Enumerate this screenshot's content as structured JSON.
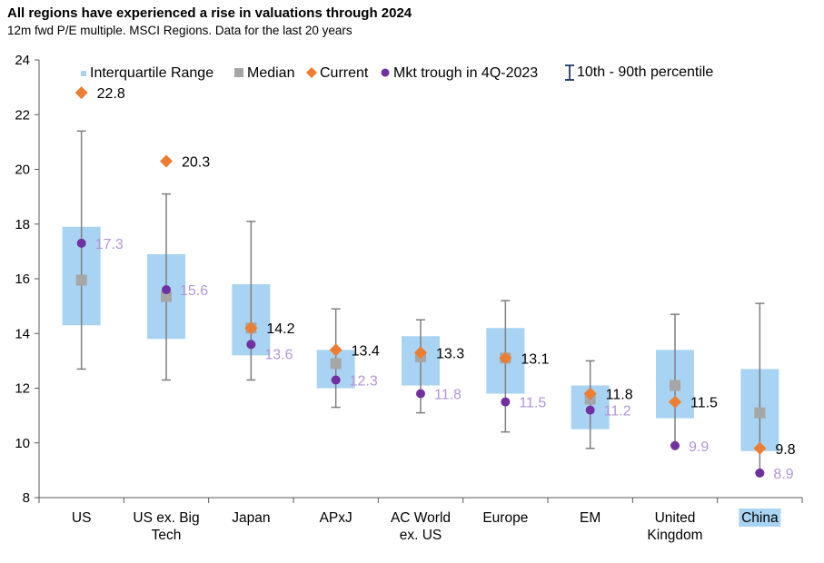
{
  "title": "All regions have experienced a rise in valuations through 2024",
  "subtitle": "12m fwd P/E multiple. MSCI Regions. Data for the last 20 years",
  "chart_data": {
    "type": "box",
    "ylim": [
      8,
      24
    ],
    "yticks": [
      8,
      10,
      12,
      14,
      16,
      18,
      20,
      22,
      24
    ],
    "grid": false,
    "legend_placement": "top",
    "colors": {
      "iqr": "#A9D3F2",
      "median": "#A6A6A6",
      "current": "#ED7D31",
      "trough": "#7030A0",
      "whisker": "#7F7F7F",
      "trough_label": "#B196D6",
      "highlight": "#A9D3F2"
    },
    "legend": {
      "iqr": "Interquartile Range",
      "median": "Median",
      "current": "Current",
      "trough": "Mkt trough in 4Q-2023",
      "whisker": "10th - 90th percentile"
    },
    "categories": [
      "US",
      "US ex. Big Tech",
      "Japan",
      "APxJ",
      "AC World ex. US",
      "Europe",
      "EM",
      "United Kingdom",
      "China"
    ],
    "category_lines": [
      [
        "US"
      ],
      [
        "US ex. Big",
        "Tech"
      ],
      [
        "Japan"
      ],
      [
        "APxJ"
      ],
      [
        "AC World",
        "ex. US"
      ],
      [
        "Europe"
      ],
      [
        "EM"
      ],
      [
        "United",
        "Kingdom"
      ],
      [
        "China"
      ]
    ],
    "highlighted_category": "China",
    "series": [
      {
        "category": "US",
        "p10": 12.7,
        "q1": 14.3,
        "median": 15.95,
        "q3": 17.9,
        "p90": 21.4,
        "current": 22.8,
        "trough": 17.3
      },
      {
        "category": "US ex. Big Tech",
        "p10": 12.3,
        "q1": 13.8,
        "median": 15.35,
        "q3": 16.9,
        "p90": 19.1,
        "current": 20.3,
        "trough": 15.6
      },
      {
        "category": "Japan",
        "p10": 12.3,
        "q1": 13.2,
        "median": 14.2,
        "q3": 15.8,
        "p90": 18.1,
        "current": 14.2,
        "trough": 13.6
      },
      {
        "category": "APxJ",
        "p10": 11.3,
        "q1": 12.0,
        "median": 12.9,
        "q3": 13.4,
        "p90": 14.9,
        "current": 13.4,
        "trough": 12.3
      },
      {
        "category": "AC World ex. US",
        "p10": 11.1,
        "q1": 12.1,
        "median": 13.15,
        "q3": 13.9,
        "p90": 14.5,
        "current": 13.3,
        "trough": 11.8
      },
      {
        "category": "Europe",
        "p10": 10.4,
        "q1": 11.8,
        "median": 13.1,
        "q3": 14.2,
        "p90": 15.2,
        "current": 13.1,
        "trough": 11.5
      },
      {
        "category": "EM",
        "p10": 9.8,
        "q1": 10.5,
        "median": 11.6,
        "q3": 12.1,
        "p90": 13.0,
        "current": 11.8,
        "trough": 11.2
      },
      {
        "category": "United Kingdom",
        "p10": 9.9,
        "q1": 10.9,
        "median": 12.1,
        "q3": 13.4,
        "p90": 14.7,
        "current": 11.5,
        "trough": 9.9
      },
      {
        "category": "China",
        "p10": 8.9,
        "q1": 9.7,
        "median": 11.1,
        "q3": 12.7,
        "p90": 15.1,
        "current": 9.8,
        "trough": 8.9
      }
    ],
    "current_labels": [
      "22.8",
      "20.3",
      "14.2",
      "13.4",
      "13.3",
      "13.1",
      "11.8",
      "11.5",
      "9.8"
    ],
    "trough_labels": [
      "17.3",
      "15.6",
      "13.6",
      "12.3",
      "11.8",
      "11.5",
      "11.2",
      "9.9",
      "8.9"
    ]
  }
}
